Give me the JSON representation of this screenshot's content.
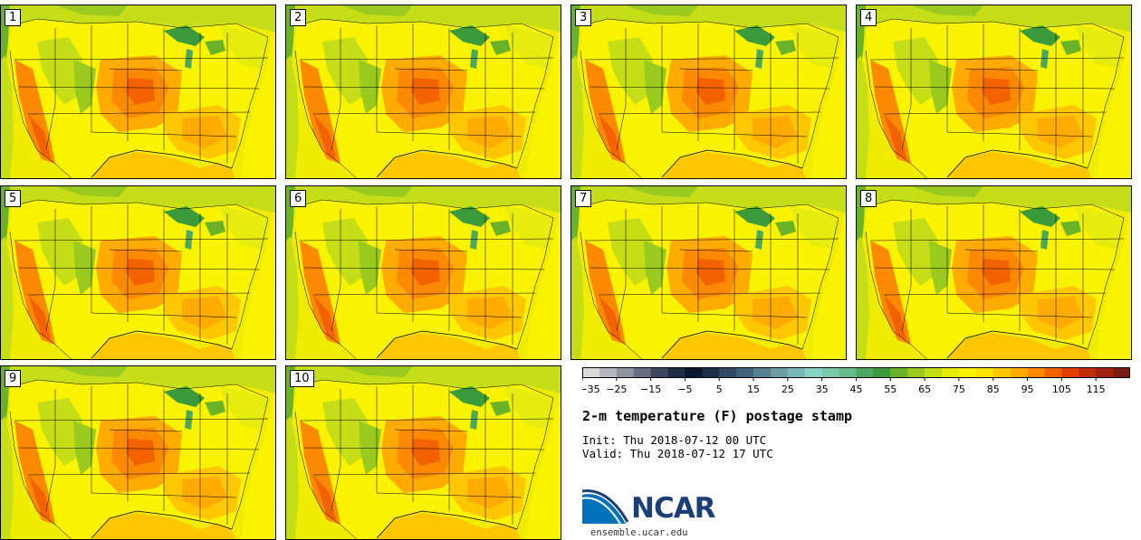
{
  "panels": [
    "1",
    "2",
    "3",
    "4",
    "5",
    "6",
    "7",
    "8",
    "9",
    "10"
  ],
  "colorbar": {
    "colors": [
      "#d9d9d9",
      "#b5b8c1",
      "#8e939f",
      "#676e80",
      "#3e4760",
      "#1f2a45",
      "#0c1830",
      "#1c2f48",
      "#2e4a63",
      "#3f637a",
      "#56808f",
      "#6a9da5",
      "#79b8b7",
      "#86d4c8",
      "#79c9a9",
      "#64bb88",
      "#4da85f",
      "#3b9a3c",
      "#6bb22b",
      "#9ac91f",
      "#c5de17",
      "#e6ec0d",
      "#f9f300",
      "#fde100",
      "#fec700",
      "#ffab00",
      "#fc8a00",
      "#f26300",
      "#dd4200",
      "#c22e06",
      "#a1230f",
      "#7c1b12"
    ],
    "ticks": [
      "−35",
      "−25",
      "−15",
      "−5",
      "5",
      "15",
      "25",
      "35",
      "45",
      "55",
      "65",
      "75",
      "85",
      "95",
      "105",
      "115"
    ]
  },
  "title": "2-m temperature (F) postage stamp",
  "init": "Init: Thu 2018-07-12 00 UTC",
  "valid": "Valid: Thu 2018-07-12 17 UTC",
  "logo": "NCAR",
  "site": "ensemble.ucar.edu"
}
